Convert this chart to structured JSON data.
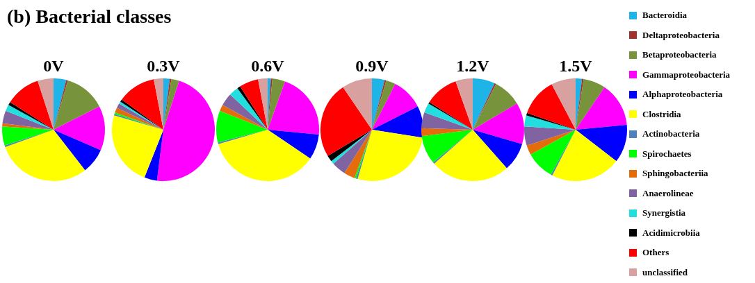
{
  "chart_data": [
    {
      "type": "pie",
      "title": "0V",
      "annotations": [
        "(b) Bacterial classes"
      ],
      "categories": [
        null,
        null,
        null,
        null,
        null,
        null,
        null,
        null,
        null,
        null,
        null,
        null,
        null,
        null
      ],
      "values": [
        4,
        0.5,
        13,
        14,
        8,
        30,
        0.5,
        6,
        1,
        4,
        2,
        1,
        11,
        5
      ],
      "colors": [
        "#1fb4e8",
        "#a0332e",
        "#77933c",
        "#ff00ff",
        "#0000ff",
        "#ffff00",
        "#4f81bd",
        "#00ff00",
        "#e46c0a",
        "#8064a2",
        "#22dede",
        "#000000",
        "#ff0000",
        "#d9a0a0"
      ]
    },
    {
      "type": "pie",
      "title": "0.3V",
      "categories": [
        null,
        null,
        null,
        null,
        null,
        null,
        null,
        null,
        null,
        null,
        null,
        null,
        null,
        null
      ],
      "values": [
        2,
        0.5,
        2.5,
        47,
        4,
        23.5,
        0.5,
        0.5,
        1.5,
        1.5,
        0.7,
        0.8,
        12,
        3
      ],
      "colors": [
        "#1fb4e8",
        "#a0332e",
        "#77933c",
        "#ff00ff",
        "#0000ff",
        "#ffff00",
        "#4f81bd",
        "#00ff00",
        "#e46c0a",
        "#8064a2",
        "#22dede",
        "#000000",
        "#ff0000",
        "#d9a0a0"
      ]
    },
    {
      "type": "pie",
      "title": "0.6V",
      "categories": [
        null,
        null,
        null,
        null,
        null,
        null,
        null,
        null,
        null,
        null,
        null,
        null,
        null,
        null
      ],
      "values": [
        1,
        0.5,
        4,
        21,
        8,
        36,
        0.5,
        10,
        2,
        4,
        3,
        1,
        6,
        3
      ],
      "colors": [
        "#1fb4e8",
        "#a0332e",
        "#77933c",
        "#ff00ff",
        "#0000ff",
        "#ffff00",
        "#4f81bd",
        "#00ff00",
        "#e46c0a",
        "#8064a2",
        "#22dede",
        "#000000",
        "#ff0000",
        "#d9a0a0"
      ]
    },
    {
      "type": "pie",
      "title": "0.9V",
      "categories": [
        null,
        null,
        null,
        null,
        null,
        null,
        null,
        null,
        null,
        null,
        null,
        null,
        null,
        null
      ],
      "values": [
        4,
        0.5,
        3,
        10,
        10,
        27,
        0.5,
        0.5,
        3.5,
        4.5,
        1,
        2,
        24,
        9.5
      ],
      "colors": [
        "#1fb4e8",
        "#a0332e",
        "#77933c",
        "#ff00ff",
        "#0000ff",
        "#ffff00",
        "#4f81bd",
        "#00ff00",
        "#e46c0a",
        "#8064a2",
        "#22dede",
        "#000000",
        "#ff0000",
        "#d9a0a0"
      ]
    },
    {
      "type": "pie",
      "title": "1.2V",
      "categories": [
        null,
        null,
        null,
        null,
        null,
        null,
        null,
        null,
        null,
        null,
        null,
        null,
        null,
        null
      ],
      "values": [
        7,
        0.5,
        9,
        13,
        9,
        25,
        0.5,
        9,
        2.5,
        5,
        3,
        0.5,
        10.6,
        5.4
      ],
      "colors": [
        "#1fb4e8",
        "#a0332e",
        "#77933c",
        "#ff00ff",
        "#0000ff",
        "#ffff00",
        "#4f81bd",
        "#00ff00",
        "#e46c0a",
        "#8064a2",
        "#22dede",
        "#000000",
        "#ff0000",
        "#d9a0a0"
      ]
    },
    {
      "type": "pie",
      "title": "1.5V",
      "legend": "right",
      "categories": [
        "Bacteroidia",
        "Deltaproteobacteria",
        "Betaproteobacteria",
        "Gammaproteobacteria",
        "Alphaproteobacteria",
        "Clostridia",
        "Actinobacteria",
        "Spirochaetes",
        "Sphingobacteriia",
        "Anaerolineae",
        "Synergistia",
        "Acidimicrobiia",
        "Others",
        "unclassified"
      ],
      "values": [
        2,
        0.5,
        7,
        14,
        12,
        22,
        0.5,
        9,
        3,
        6,
        3.5,
        0.8,
        12,
        7.7
      ],
      "colors": [
        "#1fb4e8",
        "#a0332e",
        "#77933c",
        "#ff00ff",
        "#0000ff",
        "#ffff00",
        "#4f81bd",
        "#00ff00",
        "#e46c0a",
        "#8064a2",
        "#22dede",
        "#000000",
        "#ff0000",
        "#d9a0a0"
      ]
    }
  ]
}
